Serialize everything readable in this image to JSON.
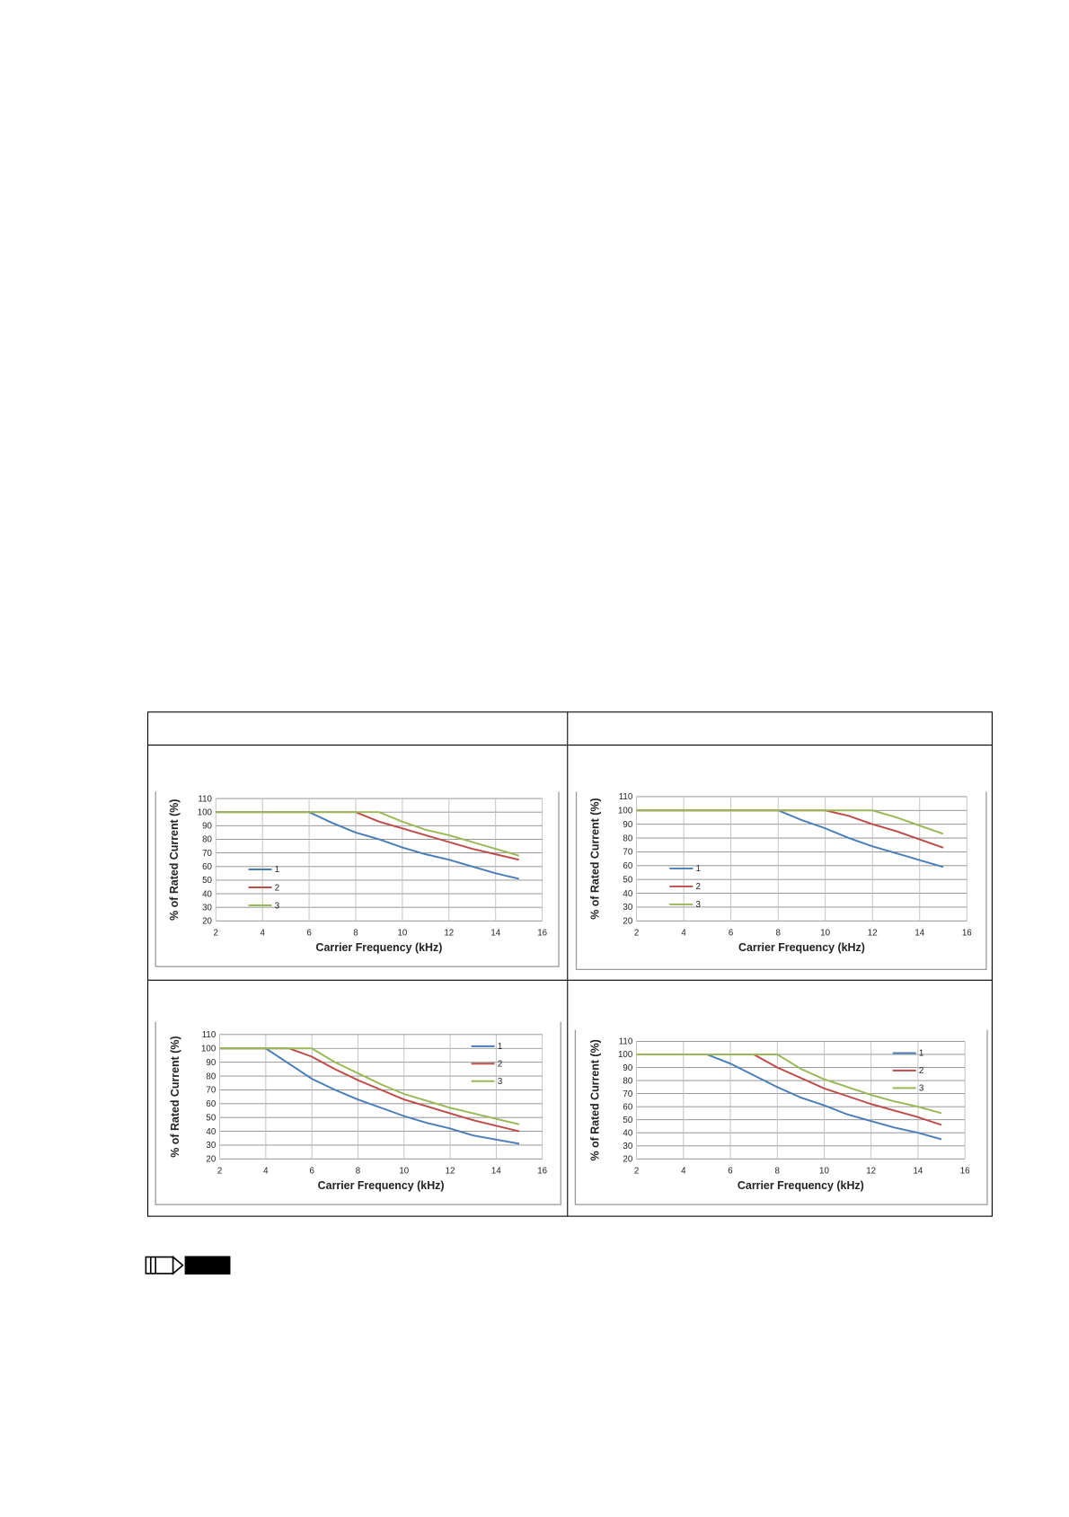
{
  "chart_data": [
    {
      "type": "line",
      "x_label": "Carrier Frequency (kHz)",
      "y_label": "% of Rated Current (%)",
      "xlim": [
        2,
        16
      ],
      "xticks": [
        2,
        4,
        6,
        8,
        10,
        12,
        14,
        16
      ],
      "ylim": [
        20,
        110
      ],
      "yticks": [
        20,
        30,
        40,
        50,
        60,
        70,
        80,
        90,
        100,
        110
      ],
      "grid": true,
      "legend": "left",
      "x": [
        2,
        3,
        4,
        5,
        6,
        7,
        8,
        9,
        10,
        11,
        12,
        13,
        14,
        15
      ],
      "series": [
        {
          "name": "1",
          "color": "#4a7ebb",
          "values": [
            100,
            100,
            100,
            100,
            100,
            92,
            85,
            80,
            74,
            69,
            65,
            60,
            55,
            51
          ]
        },
        {
          "name": "2",
          "color": "#be4b48",
          "values": [
            100,
            100,
            100,
            100,
            100,
            100,
            100,
            93,
            88,
            83,
            78,
            73,
            69,
            65
          ]
        },
        {
          "name": "3",
          "color": "#98b954",
          "values": [
            100,
            100,
            100,
            100,
            100,
            100,
            100,
            100,
            93,
            87,
            83,
            78,
            73,
            68
          ]
        }
      ]
    },
    {
      "type": "line",
      "x_label": "Carrier Frequency (kHz)",
      "y_label": "% of Rated Current (%)",
      "xlim": [
        2,
        16
      ],
      "xticks": [
        2,
        4,
        6,
        8,
        10,
        12,
        14,
        16
      ],
      "ylim": [
        20,
        110
      ],
      "yticks": [
        20,
        30,
        40,
        50,
        60,
        70,
        80,
        90,
        100,
        110
      ],
      "grid": true,
      "legend": "left",
      "x": [
        2,
        3,
        4,
        5,
        6,
        7,
        8,
        9,
        10,
        11,
        12,
        13,
        14,
        15
      ],
      "series": [
        {
          "name": "1",
          "color": "#4a7ebb",
          "values": [
            100,
            100,
            100,
            100,
            100,
            100,
            100,
            93,
            87,
            80,
            74,
            69,
            64,
            59
          ]
        },
        {
          "name": "2",
          "color": "#be4b48",
          "values": [
            100,
            100,
            100,
            100,
            100,
            100,
            100,
            100,
            100,
            96,
            90,
            85,
            79,
            73
          ]
        },
        {
          "name": "3",
          "color": "#98b954",
          "values": [
            100,
            100,
            100,
            100,
            100,
            100,
            100,
            100,
            100,
            100,
            100,
            95,
            89,
            83
          ]
        }
      ]
    },
    {
      "type": "line",
      "x_label": "Carrier Frequency (kHz)",
      "y_label": "% of Rated Current (%)",
      "xlim": [
        2,
        16
      ],
      "xticks": [
        2,
        4,
        6,
        8,
        10,
        12,
        14,
        16
      ],
      "ylim": [
        20,
        110
      ],
      "yticks": [
        20,
        30,
        40,
        50,
        60,
        70,
        80,
        90,
        100,
        110
      ],
      "grid": true,
      "legend": "upper right",
      "x": [
        2,
        3,
        4,
        5,
        6,
        7,
        8,
        9,
        10,
        11,
        12,
        13,
        14,
        15
      ],
      "series": [
        {
          "name": "1",
          "color": "#4a7ebb",
          "values": [
            100,
            100,
            100,
            89,
            78,
            70,
            63,
            57,
            51,
            46,
            42,
            37,
            34,
            31
          ]
        },
        {
          "name": "2",
          "color": "#be4b48",
          "values": [
            100,
            100,
            100,
            100,
            94,
            85,
            77,
            70,
            63,
            58,
            53,
            48,
            44,
            40
          ]
        },
        {
          "name": "3",
          "color": "#98b954",
          "values": [
            100,
            100,
            100,
            100,
            100,
            90,
            82,
            74,
            67,
            62,
            57,
            53,
            49,
            45
          ]
        }
      ]
    },
    {
      "type": "line",
      "x_label": "Carrier Frequency (kHz)",
      "y_label": "% of Rated Current (%)",
      "xlim": [
        2,
        16
      ],
      "xticks": [
        2,
        4,
        6,
        8,
        10,
        12,
        14,
        16
      ],
      "ylim": [
        20,
        110
      ],
      "yticks": [
        20,
        30,
        40,
        50,
        60,
        70,
        80,
        90,
        100,
        110
      ],
      "grid": true,
      "legend": "upper right",
      "x": [
        2,
        3,
        4,
        5,
        6,
        7,
        8,
        9,
        10,
        11,
        12,
        13,
        14,
        15
      ],
      "series": [
        {
          "name": "1",
          "color": "#4a7ebb",
          "values": [
            100,
            100,
            100,
            100,
            93,
            84,
            75,
            67,
            61,
            54,
            49,
            44,
            40,
            35
          ]
        },
        {
          "name": "2",
          "color": "#be4b48",
          "values": [
            100,
            100,
            100,
            100,
            100,
            100,
            90,
            82,
            74,
            68,
            62,
            57,
            52,
            46
          ]
        },
        {
          "name": "3",
          "color": "#98b954",
          "values": [
            100,
            100,
            100,
            100,
            100,
            100,
            100,
            89,
            81,
            75,
            69,
            64,
            60,
            55
          ]
        }
      ]
    }
  ]
}
